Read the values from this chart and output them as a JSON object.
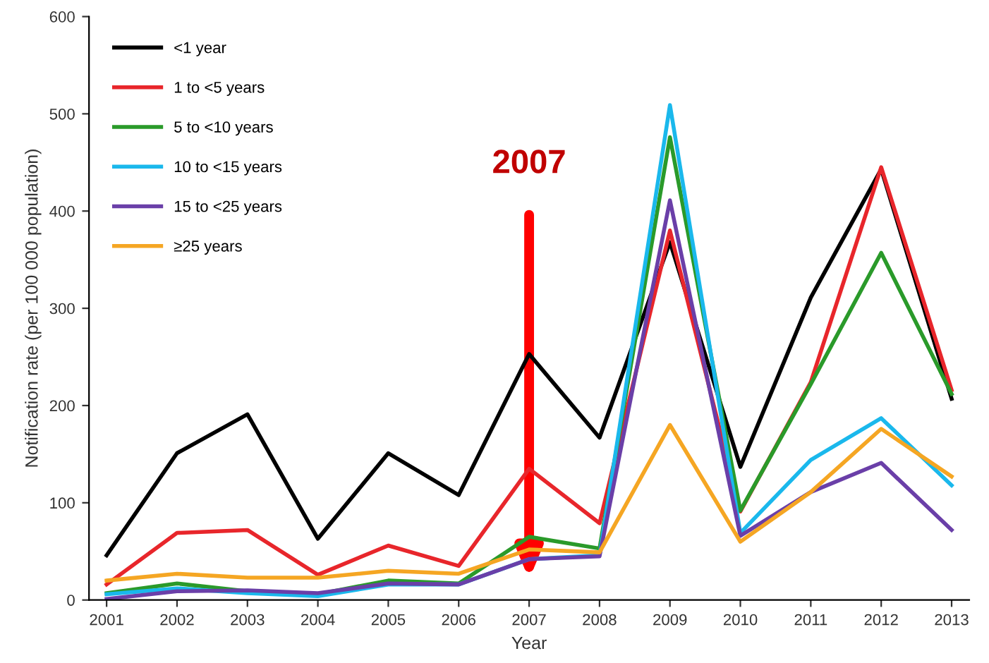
{
  "chart_data": {
    "type": "line",
    "xlabel": "Year",
    "ylabel": "Notification rate (per 100 000 population)",
    "categories": [
      "2001",
      "2002",
      "2003",
      "2004",
      "2005",
      "2006",
      "2007",
      "2008",
      "2009",
      "2010",
      "2011",
      "2012",
      "2013"
    ],
    "series": [
      {
        "name": "<1 year",
        "color": "#000000",
        "values": [
          46,
          151,
          191,
          63,
          151,
          108,
          253,
          167,
          368,
          137,
          311,
          443,
          207
        ]
      },
      {
        "name": "1 to <5 years",
        "color": "#e8262b",
        "values": [
          16,
          69,
          72,
          26,
          56,
          35,
          135,
          79,
          380,
          91,
          224,
          445,
          216
        ]
      },
      {
        "name": "5 to <10 years",
        "color": "#2a9a2a",
        "values": [
          7,
          17,
          9,
          6,
          20,
          17,
          65,
          53,
          476,
          92,
          222,
          357,
          212
        ]
      },
      {
        "name": "10 to <15 years",
        "color": "#1ab8ec",
        "values": [
          6,
          12,
          7,
          4,
          16,
          16,
          42,
          46,
          509,
          69,
          144,
          187,
          118
        ]
      },
      {
        "name": "15 to <25 years",
        "color": "#6a3fa8",
        "values": [
          1,
          9,
          10,
          7,
          17,
          16,
          42,
          45,
          411,
          66,
          111,
          141,
          72
        ]
      },
      {
        "name": "≥25 years",
        "color": "#f5a623",
        "values": [
          20,
          27,
          23,
          23,
          30,
          27,
          52,
          49,
          180,
          60,
          111,
          176,
          127
        ]
      }
    ],
    "annotations": [
      "2007"
    ],
    "ylim": [
      0,
      600
    ],
    "yticks": [
      0,
      100,
      200,
      300,
      400,
      500,
      600
    ],
    "grid": false,
    "legend": "top left",
    "marker": "none",
    "line_style": "solid"
  }
}
